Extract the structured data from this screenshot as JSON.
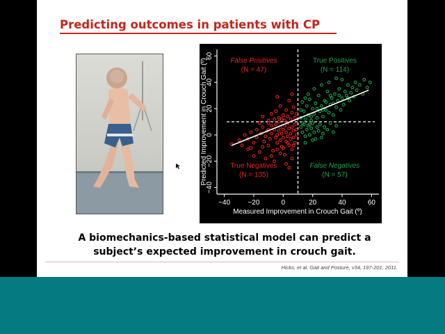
{
  "slide": {
    "title": "Predicting outcomes in patients with CP",
    "caption_line1": "A biomechanics-based statistical model can predict a",
    "caption_line2": "subject’s expected  improvement in crouch gait.",
    "citation": "Hicks, et al. Gait and Posture, v34, 197-201, 2011.",
    "title_color": "#c0271d",
    "band_color": "#057a80"
  },
  "photo": {
    "icon": "child-walking-photo"
  },
  "chart_data": {
    "type": "scatter",
    "xlabel": "Measured Improvement in Crouch Gait (º)",
    "ylabel": "Predicted Improvement in Crouch Gait (º)",
    "xlim": [
      -45,
      65
    ],
    "ylim": [
      -45,
      65
    ],
    "xticks": [
      -40,
      -20,
      0,
      20,
      40,
      60
    ],
    "yticks": [
      -40,
      -20,
      0,
      20,
      40,
      60
    ],
    "xtick_labels": [
      "−40",
      "−20",
      "0",
      "20",
      "40",
      "60"
    ],
    "ytick_labels": [
      "−40",
      "−20",
      "0",
      "20",
      "40",
      "60"
    ],
    "threshold_x": 10,
    "threshold_y": 10,
    "fit_line": {
      "x": [
        -35,
        58
      ],
      "y": [
        -8,
        34
      ]
    },
    "quadrants": [
      {
        "label": "False Positives",
        "count": "(N = 47)",
        "color": "#e8251c",
        "italic": true,
        "x": -20,
        "y": 55,
        "n": 47
      },
      {
        "label": "True Positives",
        "count": "(N = 114)",
        "color": "#1fa34a",
        "italic": false,
        "x": 35,
        "y": 55,
        "n": 114
      },
      {
        "label": "True Negatives",
        "count": "(N = 135)",
        "color": "#e8251c",
        "italic": false,
        "x": -20,
        "y": -25,
        "n": 135
      },
      {
        "label": "False Negatives",
        "count": "(N = 57)",
        "color": "#1fa34a",
        "italic": true,
        "x": 35,
        "y": -25,
        "n": 57
      }
    ],
    "series": [
      {
        "color": "#e8251c",
        "points": [
          [
            -35,
            -7
          ],
          [
            -30,
            -4
          ],
          [
            -28,
            -8
          ],
          [
            -26,
            0
          ],
          [
            -24,
            -3
          ],
          [
            -22,
            2
          ],
          [
            -22,
            -10
          ],
          [
            -20,
            -6
          ],
          [
            -18,
            4
          ],
          [
            -18,
            -2
          ],
          [
            -16,
            -13
          ],
          [
            -15,
            1
          ],
          [
            -14,
            6
          ],
          [
            -13,
            -5
          ],
          [
            -12,
            -1
          ],
          [
            -11,
            3
          ],
          [
            -10,
            9
          ],
          [
            -10,
            -8
          ],
          [
            -9,
            -3
          ],
          [
            -8,
            1
          ],
          [
            -8,
            7
          ],
          [
            -7,
            -12
          ],
          [
            -6,
            4
          ],
          [
            -5,
            -2
          ],
          [
            -5,
            8
          ],
          [
            -4,
            0
          ],
          [
            -4,
            -6
          ],
          [
            -3,
            3
          ],
          [
            -3,
            10
          ],
          [
            -2,
            -4
          ],
          [
            -2,
            6
          ],
          [
            -1,
            1
          ],
          [
            -1,
            -9
          ],
          [
            0,
            4
          ],
          [
            0,
            -2
          ],
          [
            1,
            7
          ],
          [
            1,
            -15
          ],
          [
            2,
            2
          ],
          [
            2,
            -5
          ],
          [
            3,
            9
          ],
          [
            3,
            -1
          ],
          [
            4,
            5
          ],
          [
            4,
            -8
          ],
          [
            5,
            1
          ],
          [
            5,
            -3
          ],
          [
            6,
            6
          ],
          [
            6,
            -11
          ],
          [
            7,
            3
          ],
          [
            7,
            -2
          ],
          [
            8,
            8
          ],
          [
            8,
            -6
          ],
          [
            9,
            0
          ],
          [
            9,
            4
          ],
          [
            -12,
            -18
          ],
          [
            -6,
            -20
          ],
          [
            2,
            -22
          ],
          [
            -20,
            -16
          ],
          [
            -16,
            9
          ],
          [
            -24,
            -11
          ],
          [
            -8,
            -16
          ],
          [
            0,
            -10
          ],
          [
            6,
            -18
          ],
          [
            4,
            -25
          ],
          [
            -2,
            -14
          ],
          [
            -14,
            -9
          ],
          [
            -10,
            4
          ],
          [
            -4,
            -11
          ],
          [
            3,
            -6
          ],
          [
            7,
            -8
          ]
        ]
      },
      {
        "color": "#e8251c",
        "points": [
          [
            -14,
            14
          ],
          [
            -10,
            11
          ],
          [
            -8,
            16
          ],
          [
            -6,
            12
          ],
          [
            -5,
            18
          ],
          [
            -3,
            13
          ],
          [
            -2,
            22
          ],
          [
            0,
            15
          ],
          [
            1,
            11
          ],
          [
            2,
            19
          ],
          [
            3,
            14
          ],
          [
            4,
            26
          ],
          [
            5,
            12
          ],
          [
            6,
            17
          ],
          [
            7,
            21
          ],
          [
            8,
            13
          ],
          [
            9,
            16
          ],
          [
            -4,
            29
          ],
          [
            -1,
            12
          ],
          [
            6,
            31
          ]
        ]
      },
      {
        "color": "#1fa34a",
        "points": [
          [
            12,
            13
          ],
          [
            14,
            18
          ],
          [
            15,
            12
          ],
          [
            16,
            22
          ],
          [
            17,
            15
          ],
          [
            18,
            27
          ],
          [
            19,
            11
          ],
          [
            20,
            20
          ],
          [
            21,
            16
          ],
          [
            22,
            24
          ],
          [
            23,
            13
          ],
          [
            24,
            30
          ],
          [
            25,
            18
          ],
          [
            26,
            22
          ],
          [
            27,
            14
          ],
          [
            28,
            26
          ],
          [
            29,
            19
          ],
          [
            30,
            33
          ],
          [
            31,
            17
          ],
          [
            32,
            23
          ],
          [
            33,
            28
          ],
          [
            34,
            15
          ],
          [
            35,
            31
          ],
          [
            36,
            21
          ],
          [
            37,
            26
          ],
          [
            38,
            35
          ],
          [
            39,
            19
          ],
          [
            40,
            28
          ],
          [
            41,
            23
          ],
          [
            42,
            33
          ],
          [
            43,
            30
          ],
          [
            44,
            38
          ],
          [
            45,
            26
          ],
          [
            46,
            32
          ],
          [
            47,
            36
          ],
          [
            48,
            29
          ],
          [
            49,
            40
          ],
          [
            50,
            34
          ],
          [
            52,
            38
          ],
          [
            54,
            31
          ],
          [
            55,
            42
          ],
          [
            57,
            36
          ],
          [
            59,
            40
          ],
          [
            13,
            25
          ],
          [
            17,
            31
          ],
          [
            21,
            35
          ],
          [
            26,
            38
          ],
          [
            31,
            40
          ],
          [
            36,
            43
          ],
          [
            40,
            42
          ],
          [
            15,
            28
          ],
          [
            23,
            20
          ],
          [
            29,
            25
          ],
          [
            34,
            24
          ],
          [
            38,
            30
          ],
          [
            44,
            28
          ],
          [
            12,
            19
          ],
          [
            19,
            14
          ],
          [
            27,
            19
          ],
          [
            32,
            30
          ]
        ]
      },
      {
        "color": "#1fa34a",
        "points": [
          [
            12,
            6
          ],
          [
            13,
            2
          ],
          [
            14,
            8
          ],
          [
            15,
            -1
          ],
          [
            16,
            4
          ],
          [
            17,
            7
          ],
          [
            18,
            0
          ],
          [
            19,
            5
          ],
          [
            20,
            9
          ],
          [
            21,
            2
          ],
          [
            22,
            -3
          ],
          [
            23,
            6
          ],
          [
            24,
            3
          ],
          [
            25,
            8
          ],
          [
            27,
            1
          ],
          [
            28,
            6
          ],
          [
            30,
            4
          ],
          [
            32,
            9
          ],
          [
            34,
            2
          ],
          [
            36,
            7
          ],
          [
            15,
            -6
          ],
          [
            20,
            -4
          ],
          [
            26,
            -2
          ],
          [
            13,
            9
          ],
          [
            18,
            8
          ]
        ]
      }
    ]
  }
}
